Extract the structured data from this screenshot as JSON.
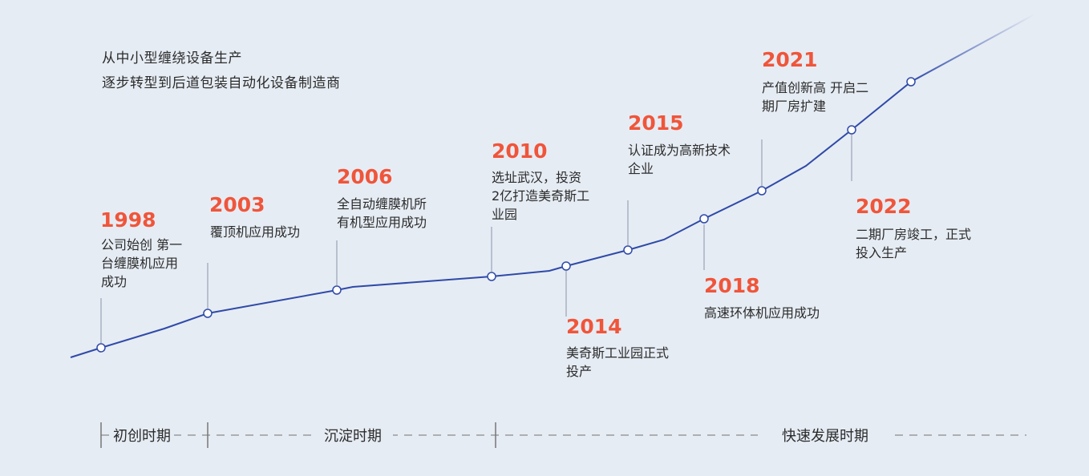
{
  "intro": {
    "line1": "从中小型缠绕设备生产",
    "line2": "逐步转型到后道包装自动化设备制造商"
  },
  "colors": {
    "line": "#2f4aa8",
    "year": "#f0553a",
    "background": "#e6ecf4",
    "stem": "#a9b2c3"
  },
  "milestones": [
    {
      "year": "1998",
      "text": "公司始创 第一\n台缠膜机应用\n成功"
    },
    {
      "year": "2003",
      "text": "覆顶机应用成功"
    },
    {
      "year": "2006",
      "text": "全自动缠膜机所\n有机型应用成功"
    },
    {
      "year": "2010",
      "text": "选址武汉，投资\n2亿打造美奇斯工\n业园"
    },
    {
      "year": "2014",
      "text": "美奇斯工业园正式\n投产"
    },
    {
      "year": "2015",
      "text": "认证成为高新技术\n企业"
    },
    {
      "year": "2018",
      "text": "高速环体机应用成功"
    },
    {
      "year": "2021",
      "text": "产值创新高 开启二\n期厂房扩建"
    },
    {
      "year": "2022",
      "text": "二期厂房竣工，正式\n投入生产"
    }
  ],
  "phases": [
    "初创时期",
    "沉淀时期",
    "快速发展时期"
  ]
}
